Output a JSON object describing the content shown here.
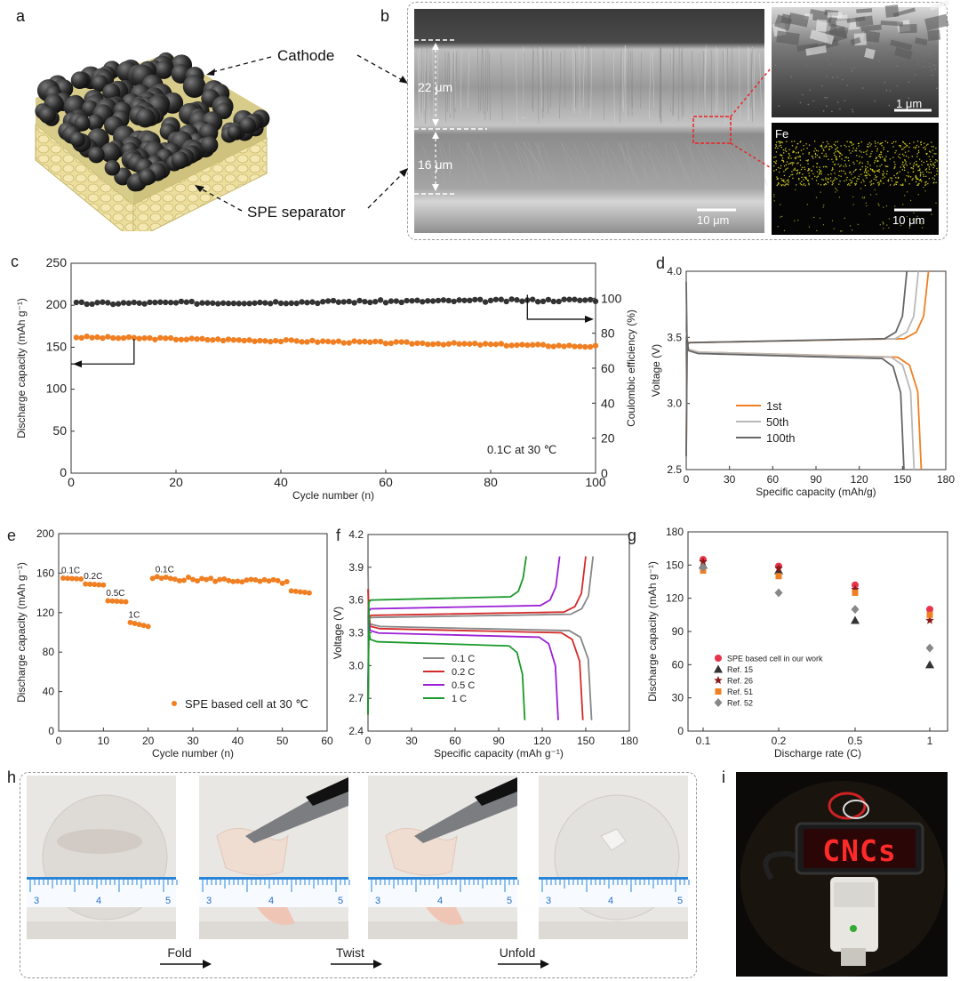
{
  "panels": {
    "a": {
      "letter": "a",
      "cathode_label": "Cathode",
      "separator_label": "SPE separator"
    },
    "b": {
      "letter": "b",
      "thickness_top": "22 μm",
      "thickness_bottom": "16 μm",
      "scale_main": "10 μm",
      "scale_zoom": "1 μm",
      "eds_element": "Fe",
      "scale_eds": "10 μm"
    },
    "h": {
      "letter": "h",
      "steps": [
        "Fold",
        "Twist",
        "Unfold"
      ],
      "ruler_ticks": [
        "3",
        "4",
        "5"
      ]
    },
    "i": {
      "letter": "i",
      "led_text": "CNCs"
    }
  },
  "colors": {
    "orange": "#f07f22",
    "dark": "#333333",
    "gray50": "#b9b9b9",
    "gray100": "#666666",
    "red": "#d42a2a",
    "purple": "#9b1fd6",
    "green": "#1a9a2a"
  },
  "chart_data": [
    {
      "id": "c",
      "letter": "c",
      "type": "scatter",
      "xlabel": "Cycle number (n)",
      "ylabel": "Discharge capacity (mAh g⁻¹)",
      "y2label": "Coulombic efficiency (%)",
      "xlim": [
        0,
        100
      ],
      "ylim": [
        0,
        250
      ],
      "y2lim": [
        0,
        120
      ],
      "xticks": [
        0,
        20,
        40,
        60,
        80,
        100
      ],
      "yticks": [
        0,
        50,
        100,
        150,
        200,
        250
      ],
      "y2ticks": [
        0,
        20,
        40,
        60,
        80,
        100
      ],
      "annotation": "0.1C at 30 ℃",
      "series": [
        {
          "axis": "left",
          "color": "#f07f22",
          "x_start": 1,
          "x_end": 100,
          "y_start": 162,
          "y_end": 151
        },
        {
          "axis": "right",
          "color": "#333333",
          "x_start": 1,
          "x_end": 100,
          "y_start": 97,
          "y_end": 99
        }
      ]
    },
    {
      "id": "d",
      "letter": "d",
      "type": "line",
      "xlabel": "Specific capacity (mAh/g)",
      "ylabel": "Voltage (V)",
      "xlim": [
        0,
        180
      ],
      "ylim": [
        2.5,
        4.0
      ],
      "xticks": [
        0,
        30,
        60,
        90,
        120,
        150,
        180
      ],
      "yticks": [
        2.5,
        3.0,
        3.5,
        4.0
      ],
      "legend_position": "bottom-left",
      "series": [
        {
          "name": "1st",
          "color": "#f07f22",
          "charge_cap": 168,
          "discharge_cap": 163,
          "plateau_charge": 3.46,
          "plateau_discharge": 3.39
        },
        {
          "name": "50th",
          "color": "#b9b9b9",
          "charge_cap": 161,
          "discharge_cap": 158,
          "plateau_charge": 3.46,
          "plateau_discharge": 3.39
        },
        {
          "name": "100th",
          "color": "#666666",
          "charge_cap": 153,
          "discharge_cap": 151,
          "plateau_charge": 3.46,
          "plateau_discharge": 3.38
        }
      ]
    },
    {
      "id": "e",
      "letter": "e",
      "type": "scatter",
      "xlabel": "Cycle number (n)",
      "ylabel": "Discharge capacity (mAh g⁻¹)",
      "xlim": [
        0,
        60
      ],
      "ylim": [
        0,
        200
      ],
      "xticks": [
        0,
        10,
        20,
        30,
        40,
        50,
        60
      ],
      "yticks": [
        0,
        40,
        80,
        120,
        160,
        200
      ],
      "legend": "SPE based cell at 30 ℃",
      "rate_labels": [
        {
          "text": "0.1C",
          "x": 1,
          "y": 160
        },
        {
          "text": "0.2C",
          "x": 6,
          "y": 154
        },
        {
          "text": "0.5C",
          "x": 11,
          "y": 137
        },
        {
          "text": "1C",
          "x": 16,
          "y": 115
        },
        {
          "text": "0.1C",
          "x": 22,
          "y": 161
        }
      ],
      "segments": [
        {
          "x_start": 1,
          "x_end": 5,
          "y_start": 155,
          "y_end": 154
        },
        {
          "x_start": 6,
          "x_end": 10,
          "y_start": 149,
          "y_end": 148
        },
        {
          "x_start": 11,
          "x_end": 15,
          "y_start": 132,
          "y_end": 131
        },
        {
          "x_start": 16,
          "x_end": 20,
          "y_start": 110,
          "y_end": 106
        },
        {
          "x_start": 21,
          "x_end": 51,
          "y_start": 155,
          "y_end": 151
        },
        {
          "x_start": 52,
          "x_end": 56,
          "y_start": 142,
          "y_end": 140
        }
      ]
    },
    {
      "id": "f",
      "letter": "f",
      "type": "line",
      "xlabel": "Specific capacity (mAh g⁻¹)",
      "ylabel": "Voltage (V)",
      "xlim": [
        0,
        180
      ],
      "ylim": [
        2.4,
        4.2
      ],
      "xticks": [
        0,
        30,
        60,
        90,
        120,
        150,
        180
      ],
      "yticks": [
        2.4,
        2.7,
        3.0,
        3.3,
        3.6,
        3.9,
        4.2
      ],
      "series": [
        {
          "name": "0.1 C",
          "color": "#888888",
          "charge_cap": 155,
          "discharge_cap": 154,
          "plateau_charge": 3.44,
          "plateau_discharge": 3.36
        },
        {
          "name": "0.2 C",
          "color": "#d42a2a",
          "charge_cap": 150,
          "discharge_cap": 148,
          "plateau_charge": 3.46,
          "plateau_discharge": 3.34
        },
        {
          "name": "0.5 C",
          "color": "#9b1fd6",
          "charge_cap": 132,
          "discharge_cap": 131,
          "plateau_charge": 3.52,
          "plateau_discharge": 3.3
        },
        {
          "name": "1 C",
          "color": "#1a9a2a",
          "charge_cap": 109,
          "discharge_cap": 108,
          "plateau_charge": 3.6,
          "plateau_discharge": 3.22
        }
      ]
    },
    {
      "id": "g",
      "letter": "g",
      "type": "scatter",
      "xlabel": "Discharge rate (C)",
      "ylabel": "Discharge capacity (mAh g⁻¹)",
      "categories": [
        "0.1",
        "0.2",
        "0.5",
        "1"
      ],
      "ylim": [
        0,
        180
      ],
      "yticks": [
        0,
        30,
        60,
        90,
        120,
        150,
        180
      ],
      "series": [
        {
          "name": "SPE based cell in our work",
          "color": "#e8334a",
          "marker": "circle",
          "values": [
            155,
            149,
            132,
            110
          ]
        },
        {
          "name": "Ref. 15",
          "color": "#333333",
          "marker": "triangle",
          "values": [
            150,
            145,
            100,
            60
          ]
        },
        {
          "name": "Ref. 26",
          "color": "#8b1a1a",
          "marker": "star",
          "values": [
            153,
            147,
            128,
            100
          ]
        },
        {
          "name": "Ref. 51",
          "color": "#f07f22",
          "marker": "square",
          "values": [
            145,
            140,
            125,
            105
          ]
        },
        {
          "name": "Ref. 52",
          "color": "#888888",
          "marker": "diamond",
          "values": [
            148,
            125,
            110,
            75
          ]
        }
      ]
    }
  ]
}
